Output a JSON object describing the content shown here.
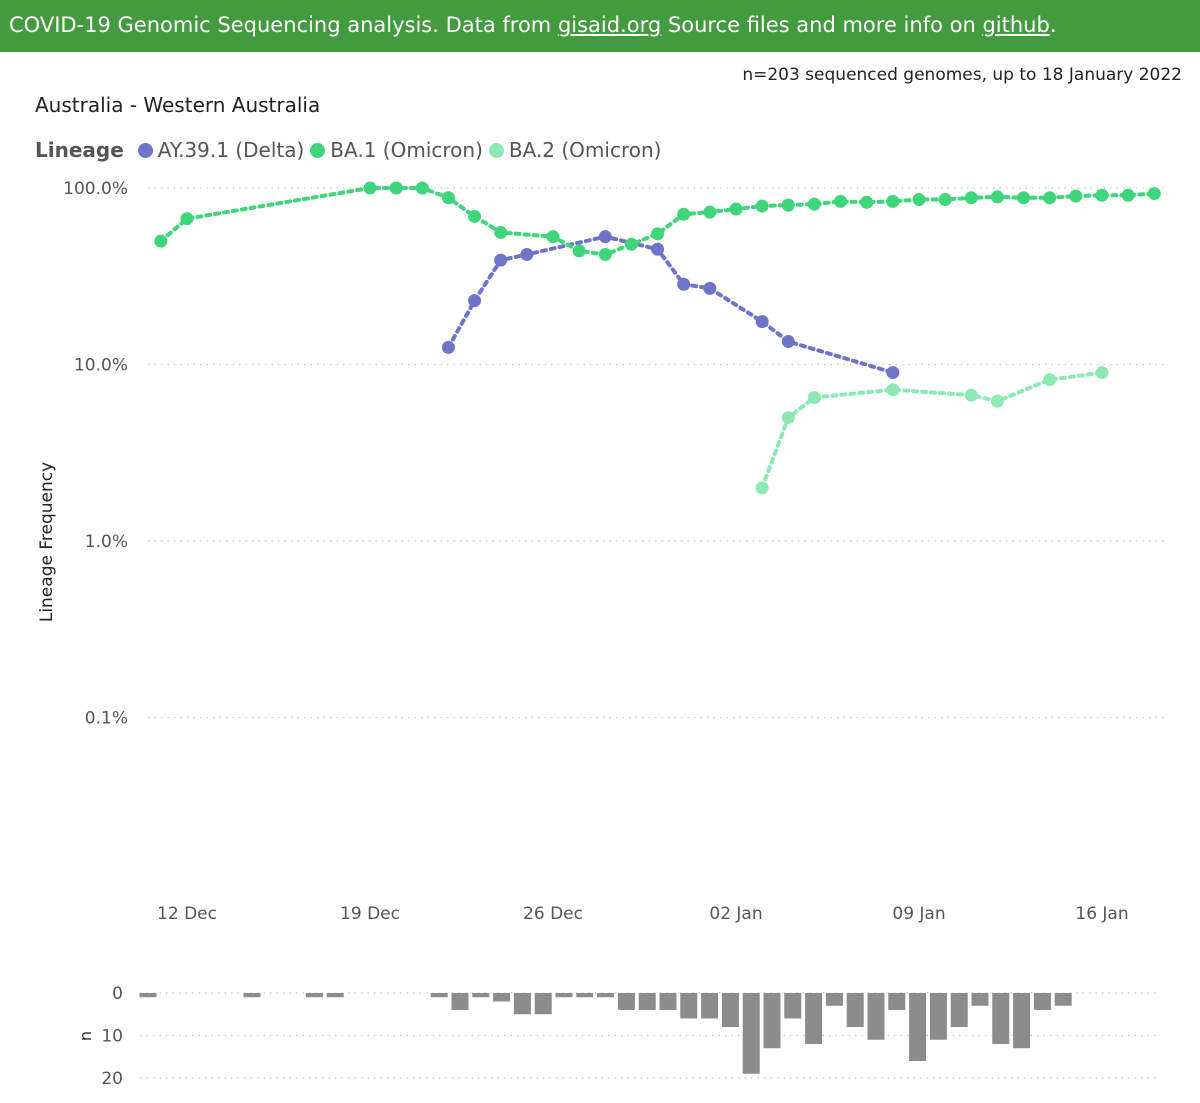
{
  "header": {
    "text_before": "COVID-19 Genomic Sequencing analysis. Data from ",
    "link1": "gisaid.org",
    "text_middle": " Source files and more info on ",
    "link2": "github",
    "text_after": "."
  },
  "subtitle": "n=203 sequenced genomes, up to 18 January 2022",
  "colors": {
    "banner": "#449a3f",
    "delta": "#6e74c7",
    "ba1": "#3fd57a",
    "ba2": "#8ee8b3",
    "bars": "#8c8c8c"
  },
  "chart_data": [
    {
      "type": "line",
      "title": "Australia - Western Australia",
      "ylabel": "Lineage Frequency",
      "yscale": "log",
      "ylim": [
        0.01,
        100
      ],
      "yticks": [
        100,
        10,
        1,
        0.1
      ],
      "ytick_labels": [
        "100.0%",
        "10.0%",
        "1.0%",
        "0.1%"
      ],
      "xlim": [
        "2021-12-10",
        "2022-01-18"
      ],
      "xticks": [
        "2021-12-12",
        "2021-12-19",
        "2021-12-26",
        "2022-01-02",
        "2022-01-09",
        "2022-01-16"
      ],
      "xtick_labels": [
        "12 Dec",
        "19 Dec",
        "26 Dec",
        "02 Jan",
        "09 Jan",
        "16 Jan"
      ],
      "legend_title": "Lineage",
      "legend_position": "top-left",
      "grid": true,
      "series": [
        {
          "name": "AY.39.1 (Delta)",
          "color": "#6e74c7",
          "points": [
            [
              "2021-12-22",
              12.5
            ],
            [
              "2021-12-23",
              23
            ],
            [
              "2021-12-24",
              39
            ],
            [
              "2021-12-25",
              42
            ],
            [
              "2021-12-28",
              53
            ],
            [
              "2021-12-30",
              45
            ],
            [
              "2021-12-31",
              28.5
            ],
            [
              "2022-01-01",
              27
            ],
            [
              "2022-01-03",
              17.5
            ],
            [
              "2022-01-04",
              13.5
            ],
            [
              "2022-01-08",
              9.0
            ]
          ]
        },
        {
          "name": "BA.1 (Omicron)",
          "color": "#3fd57a",
          "points": [
            [
              "2021-12-11",
              50
            ],
            [
              "2021-12-12",
              67
            ],
            [
              "2021-12-19",
              100
            ],
            [
              "2021-12-20",
              100
            ],
            [
              "2021-12-21",
              100
            ],
            [
              "2021-12-22",
              88
            ],
            [
              "2021-12-23",
              69
            ],
            [
              "2021-12-24",
              56
            ],
            [
              "2021-12-26",
              53
            ],
            [
              "2021-12-27",
              44
            ],
            [
              "2021-12-28",
              42
            ],
            [
              "2021-12-29",
              48
            ],
            [
              "2021-12-30",
              55
            ],
            [
              "2021-12-31",
              71
            ],
            [
              "2022-01-01",
              73
            ],
            [
              "2022-01-02",
              76
            ],
            [
              "2022-01-03",
              79
            ],
            [
              "2022-01-04",
              80
            ],
            [
              "2022-01-05",
              81
            ],
            [
              "2022-01-06",
              84
            ],
            [
              "2022-01-07",
              83
            ],
            [
              "2022-01-08",
              84
            ],
            [
              "2022-01-09",
              86
            ],
            [
              "2022-01-10",
              86
            ],
            [
              "2022-01-11",
              88
            ],
            [
              "2022-01-12",
              89
            ],
            [
              "2022-01-13",
              88
            ],
            [
              "2022-01-14",
              88
            ],
            [
              "2022-01-15",
              90
            ],
            [
              "2022-01-16",
              91
            ],
            [
              "2022-01-17",
              91
            ],
            [
              "2022-01-18",
              93
            ]
          ]
        },
        {
          "name": "BA.2 (Omicron)",
          "color": "#8ee8b3",
          "points": [
            [
              "2022-01-03",
              2.0
            ],
            [
              "2022-01-04",
              5.0
            ],
            [
              "2022-01-05",
              6.5
            ],
            [
              "2022-01-08",
              7.2
            ],
            [
              "2022-01-11",
              6.7
            ],
            [
              "2022-01-12",
              6.2
            ],
            [
              "2022-01-14",
              8.2
            ],
            [
              "2022-01-16",
              9.0
            ]
          ]
        }
      ]
    },
    {
      "type": "bar",
      "ylabel": "n",
      "ylim": [
        0,
        20
      ],
      "yticks": [
        0,
        10,
        20
      ],
      "ytick_labels": [
        "0",
        "10",
        "20"
      ],
      "orientation": "downward",
      "points": [
        [
          "2021-12-10",
          1
        ],
        [
          "2021-12-15",
          1
        ],
        [
          "2021-12-18",
          1
        ],
        [
          "2021-12-19",
          1
        ],
        [
          "2021-12-24",
          1
        ],
        [
          "2021-12-25",
          4
        ],
        [
          "2021-12-26",
          1
        ],
        [
          "2021-12-27",
          2
        ],
        [
          "2021-12-28",
          5
        ],
        [
          "2021-12-29",
          5
        ],
        [
          "2021-12-30",
          1
        ],
        [
          "2021-12-31",
          1
        ],
        [
          "2022-01-01",
          1
        ],
        [
          "2022-01-02",
          4
        ],
        [
          "2022-01-03",
          4
        ],
        [
          "2022-01-04",
          4
        ],
        [
          "2022-01-05",
          6
        ],
        [
          "2022-01-06",
          6
        ],
        [
          "2022-01-07",
          8
        ],
        [
          "2022-01-08",
          19
        ],
        [
          "2022-01-09",
          13
        ],
        [
          "2022-01-10",
          6
        ],
        [
          "2022-01-11",
          12
        ],
        [
          "2022-01-12",
          3
        ],
        [
          "2022-01-13",
          8
        ],
        [
          "2022-01-14",
          11
        ],
        [
          "2022-01-15",
          4
        ],
        [
          "2022-01-16",
          16
        ],
        [
          "2022-01-17",
          11
        ],
        [
          "2022-01-18",
          8
        ],
        [
          "2022-01-19",
          3
        ],
        [
          "2022-01-20",
          12
        ],
        [
          "2022-01-21",
          13
        ],
        [
          "2022-01-22",
          4
        ],
        [
          "2022-01-23",
          3
        ]
      ]
    }
  ]
}
